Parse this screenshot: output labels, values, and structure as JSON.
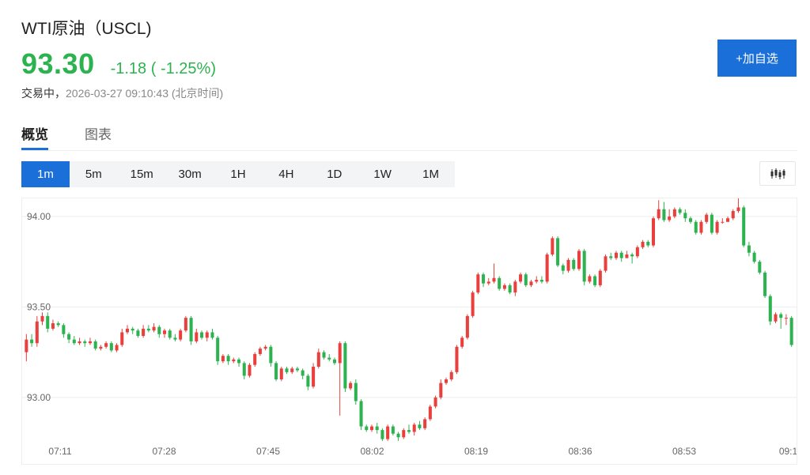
{
  "header": {
    "title": "WTI原油（USCL)",
    "price": "93.30",
    "change": "-1.18 ( -1.25%)",
    "status": "交易中，",
    "timestamp": "2026-03-27 09:10:43 (北京时间)",
    "add_watchlist_label": "+加自选"
  },
  "tabs": [
    {
      "label": "概览",
      "active": true
    },
    {
      "label": "图表",
      "active": false
    }
  ],
  "intervals": [
    {
      "label": "1m",
      "active": true
    },
    {
      "label": "5m",
      "active": false
    },
    {
      "label": "15m",
      "active": false
    },
    {
      "label": "30m",
      "active": false
    },
    {
      "label": "1H",
      "active": false
    },
    {
      "label": "4H",
      "active": false
    },
    {
      "label": "1D",
      "active": false
    },
    {
      "label": "1W",
      "active": false
    },
    {
      "label": "1M",
      "active": false
    }
  ],
  "chart_type_icon": "candlestick-icon",
  "colors": {
    "accent": "#1a6fd8",
    "up": "#e8413d",
    "down": "#2cb34f",
    "price": "#2cb34f",
    "grid": "#eeeeee",
    "axis_text": "#666666"
  },
  "chart_data": {
    "type": "candlestick",
    "ylim": [
      92.79,
      94.1
    ],
    "yticks": [
      "94.00",
      "93.50",
      "93.00"
    ],
    "xticks": [
      "07:11",
      "07:28",
      "07:45",
      "08:02",
      "08:19",
      "08:36",
      "08:53",
      "09:1"
    ],
    "grid": true,
    "candles": [
      [
        93.25,
        93.32,
        93.35,
        93.2
      ],
      [
        93.32,
        93.3,
        93.35,
        93.28
      ],
      [
        93.3,
        93.42,
        93.45,
        93.28
      ],
      [
        93.42,
        93.45,
        93.47,
        93.4
      ],
      [
        93.45,
        93.38,
        93.47,
        93.36
      ],
      [
        93.38,
        93.41,
        93.43,
        93.37
      ],
      [
        93.41,
        93.4,
        93.42,
        93.39
      ],
      [
        93.4,
        93.35,
        93.41,
        93.33
      ],
      [
        93.35,
        93.32,
        93.36,
        93.3
      ],
      [
        93.32,
        93.3,
        93.34,
        93.29
      ],
      [
        93.3,
        93.31,
        93.33,
        93.29
      ],
      [
        93.31,
        93.3,
        93.32,
        93.28
      ],
      [
        93.3,
        93.31,
        93.33,
        93.29
      ],
      [
        93.31,
        93.27,
        93.32,
        93.26
      ],
      [
        93.27,
        93.28,
        93.29,
        93.26
      ],
      [
        93.28,
        93.3,
        93.31,
        93.27
      ],
      [
        93.3,
        93.26,
        93.31,
        93.25
      ],
      [
        93.26,
        93.29,
        93.3,
        93.25
      ],
      [
        93.29,
        93.36,
        93.38,
        93.28
      ],
      [
        93.36,
        93.38,
        93.4,
        93.35
      ],
      [
        93.38,
        93.37,
        93.39,
        93.35
      ],
      [
        93.37,
        93.34,
        93.38,
        93.33
      ],
      [
        93.34,
        93.38,
        93.4,
        93.33
      ],
      [
        93.38,
        93.37,
        93.4,
        93.36
      ],
      [
        93.37,
        93.39,
        93.41,
        93.36
      ],
      [
        93.39,
        93.35,
        93.4,
        93.33
      ],
      [
        93.35,
        93.37,
        93.38,
        93.33
      ],
      [
        93.37,
        93.33,
        93.38,
        93.32
      ],
      [
        93.33,
        93.32,
        93.35,
        93.31
      ],
      [
        93.32,
        93.37,
        93.38,
        93.31
      ],
      [
        93.37,
        93.44,
        93.45,
        93.36
      ],
      [
        93.44,
        93.31,
        93.45,
        93.29
      ],
      [
        93.31,
        93.36,
        93.38,
        93.3
      ],
      [
        93.36,
        93.33,
        93.37,
        93.32
      ],
      [
        93.33,
        93.36,
        93.37,
        93.31
      ],
      [
        93.36,
        93.33,
        93.38,
        93.32
      ],
      [
        93.33,
        93.2,
        93.34,
        93.18
      ],
      [
        93.2,
        93.23,
        93.24,
        93.19
      ],
      [
        93.23,
        93.2,
        93.24,
        93.18
      ],
      [
        93.2,
        93.21,
        93.22,
        93.19
      ],
      [
        93.21,
        93.19,
        93.22,
        93.17
      ],
      [
        93.19,
        93.12,
        93.2,
        93.1
      ],
      [
        93.12,
        93.18,
        93.19,
        93.11
      ],
      [
        93.18,
        93.24,
        93.25,
        93.17
      ],
      [
        93.24,
        93.27,
        93.28,
        93.23
      ],
      [
        93.27,
        93.28,
        93.29,
        93.26
      ],
      [
        93.28,
        93.19,
        93.29,
        93.17
      ],
      [
        93.19,
        93.1,
        93.2,
        93.09
      ],
      [
        93.1,
        93.16,
        93.17,
        93.09
      ],
      [
        93.16,
        93.14,
        93.17,
        93.13
      ],
      [
        93.14,
        93.16,
        93.17,
        93.13
      ],
      [
        93.16,
        93.15,
        93.17,
        93.14
      ],
      [
        93.15,
        93.12,
        93.16,
        93.1
      ],
      [
        93.12,
        93.06,
        93.13,
        93.04
      ],
      [
        93.06,
        93.17,
        93.19,
        93.05
      ],
      [
        93.17,
        93.25,
        93.27,
        93.16
      ],
      [
        93.25,
        93.22,
        93.26,
        93.21
      ],
      [
        93.22,
        93.21,
        93.24,
        93.2
      ],
      [
        93.21,
        93.19,
        93.22,
        93.18
      ],
      [
        93.19,
        93.3,
        93.31,
        92.9
      ],
      [
        93.3,
        93.05,
        93.31,
        93.03
      ],
      [
        93.05,
        93.08,
        93.09,
        93.04
      ],
      [
        93.08,
        92.98,
        93.1,
        92.96
      ],
      [
        92.98,
        92.84,
        92.99,
        92.82
      ],
      [
        92.84,
        92.82,
        92.85,
        92.81
      ],
      [
        92.82,
        92.84,
        92.85,
        92.81
      ],
      [
        92.84,
        92.82,
        92.86,
        92.8
      ],
      [
        92.82,
        92.77,
        92.83,
        92.76
      ],
      [
        92.77,
        92.84,
        92.85,
        92.76
      ],
      [
        92.84,
        92.8,
        92.85,
        92.79
      ],
      [
        92.8,
        92.78,
        92.81,
        92.76
      ],
      [
        92.78,
        92.82,
        92.83,
        92.77
      ],
      [
        92.82,
        92.81,
        92.85,
        92.8
      ],
      [
        92.81,
        92.85,
        92.86,
        92.79
      ],
      [
        92.85,
        92.83,
        92.87,
        92.82
      ],
      [
        92.83,
        92.88,
        92.89,
        92.82
      ],
      [
        92.88,
        92.95,
        92.96,
        92.87
      ],
      [
        92.95,
        93.0,
        93.01,
        92.94
      ],
      [
        93.0,
        93.08,
        93.1,
        92.99
      ],
      [
        93.08,
        93.1,
        93.11,
        93.07
      ],
      [
        93.1,
        93.14,
        93.15,
        93.09
      ],
      [
        93.14,
        93.28,
        93.29,
        93.13
      ],
      [
        93.28,
        93.33,
        93.34,
        93.27
      ],
      [
        93.33,
        93.45,
        93.46,
        93.32
      ],
      [
        93.45,
        93.58,
        93.59,
        93.44
      ],
      [
        93.58,
        93.68,
        93.69,
        93.57
      ],
      [
        93.68,
        93.63,
        93.69,
        93.61
      ],
      [
        93.63,
        93.64,
        93.66,
        93.62
      ],
      [
        93.64,
        93.66,
        93.74,
        93.63
      ],
      [
        93.66,
        93.6,
        93.67,
        93.59
      ],
      [
        93.6,
        93.62,
        93.63,
        93.59
      ],
      [
        93.62,
        93.58,
        93.63,
        93.57
      ],
      [
        93.58,
        93.64,
        93.65,
        93.56
      ],
      [
        93.64,
        93.68,
        93.69,
        93.63
      ],
      [
        93.68,
        93.62,
        93.69,
        93.61
      ],
      [
        93.62,
        93.64,
        93.65,
        93.61
      ],
      [
        93.64,
        93.65,
        93.67,
        93.63
      ],
      [
        93.65,
        93.64,
        93.67,
        93.63
      ],
      [
        93.64,
        93.79,
        93.8,
        93.63
      ],
      [
        93.79,
        93.88,
        93.89,
        93.78
      ],
      [
        93.88,
        93.73,
        93.89,
        93.72
      ],
      [
        93.73,
        93.7,
        93.74,
        93.68
      ],
      [
        93.7,
        93.76,
        93.77,
        93.69
      ],
      [
        93.76,
        93.71,
        93.77,
        93.7
      ],
      [
        93.71,
        93.81,
        93.82,
        93.7
      ],
      [
        93.81,
        93.64,
        93.82,
        93.62
      ],
      [
        93.64,
        93.67,
        93.68,
        93.63
      ],
      [
        93.67,
        93.62,
        93.68,
        93.61
      ],
      [
        93.62,
        93.7,
        93.71,
        93.61
      ],
      [
        93.7,
        93.78,
        93.79,
        93.69
      ],
      [
        93.78,
        93.77,
        93.8,
        93.76
      ],
      [
        93.77,
        93.8,
        93.81,
        93.76
      ],
      [
        93.8,
        93.77,
        93.81,
        93.75
      ],
      [
        93.77,
        93.79,
        93.81,
        93.77
      ],
      [
        93.79,
        93.78,
        93.8,
        93.74
      ],
      [
        93.78,
        93.83,
        93.84,
        93.77
      ],
      [
        93.83,
        93.86,
        93.87,
        93.82
      ],
      [
        93.86,
        93.84,
        93.87,
        93.83
      ],
      [
        93.84,
        93.99,
        94.0,
        93.83
      ],
      [
        93.99,
        94.04,
        94.09,
        93.98
      ],
      [
        94.04,
        93.98,
        94.08,
        93.97
      ],
      [
        93.98,
        94.0,
        94.04,
        93.97
      ],
      [
        94.0,
        94.04,
        94.05,
        93.99
      ],
      [
        94.04,
        94.02,
        94.05,
        94.01
      ],
      [
        94.02,
        93.99,
        94.04,
        93.97
      ],
      [
        93.99,
        93.97,
        94.0,
        93.96
      ],
      [
        93.97,
        93.91,
        93.98,
        93.9
      ],
      [
        93.91,
        93.97,
        93.98,
        93.9
      ],
      [
        93.97,
        94.01,
        94.02,
        93.96
      ],
      [
        94.01,
        93.91,
        94.02,
        93.9
      ],
      [
        93.91,
        93.97,
        93.98,
        93.9
      ],
      [
        93.97,
        93.97,
        93.99,
        93.96
      ],
      [
        93.97,
        93.99,
        94.0,
        93.98
      ],
      [
        93.99,
        94.03,
        94.04,
        93.98
      ],
      [
        94.03,
        94.05,
        94.11,
        94.02
      ],
      [
        94.05,
        93.84,
        94.06,
        93.83
      ],
      [
        93.84,
        93.8,
        93.86,
        93.78
      ],
      [
        93.8,
        93.75,
        93.81,
        93.74
      ],
      [
        93.75,
        93.69,
        93.76,
        93.68
      ],
      [
        93.69,
        93.56,
        93.7,
        93.55
      ],
      [
        93.56,
        93.42,
        93.57,
        93.4
      ],
      [
        93.42,
        93.46,
        93.47,
        93.41
      ],
      [
        93.46,
        93.44,
        93.47,
        93.38
      ],
      [
        93.44,
        93.44,
        93.46,
        93.4
      ],
      [
        93.44,
        93.29,
        93.45,
        93.28
      ]
    ]
  }
}
